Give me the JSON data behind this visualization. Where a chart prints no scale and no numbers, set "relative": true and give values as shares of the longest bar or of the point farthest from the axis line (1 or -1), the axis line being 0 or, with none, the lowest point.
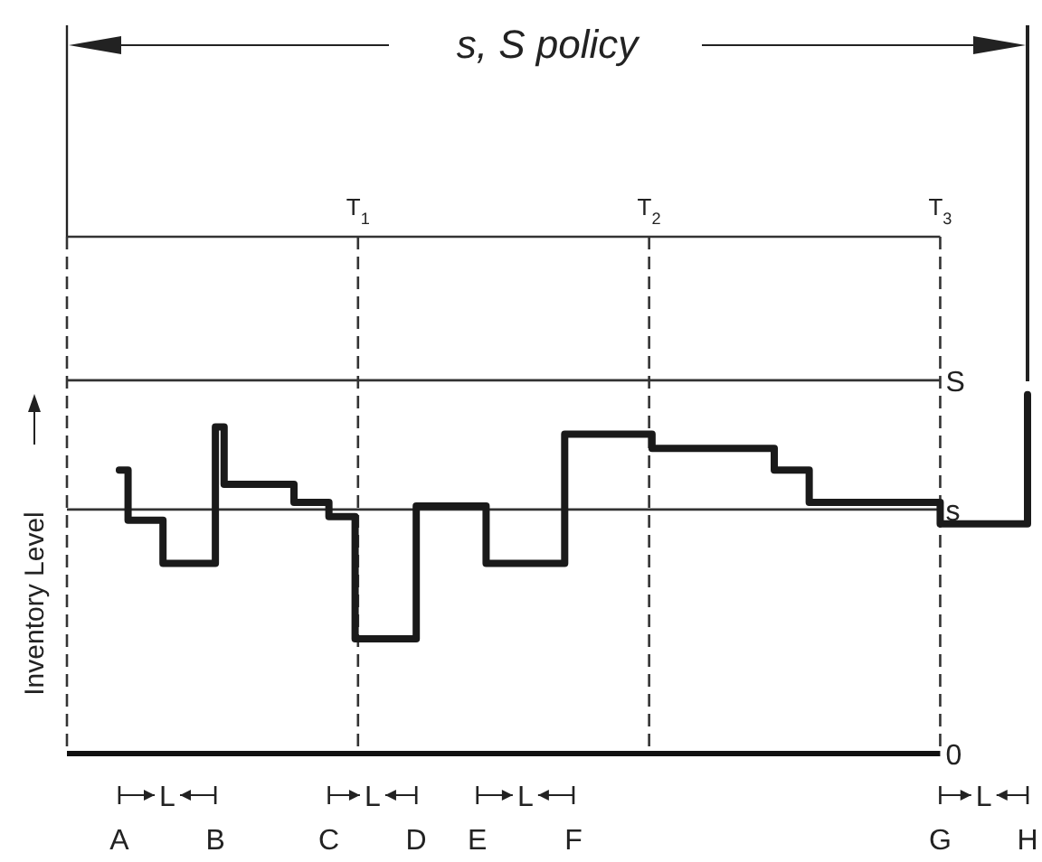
{
  "chart_data": {
    "type": "step",
    "title": "s, S policy",
    "ylabel": "Inventory Level",
    "relative": true,
    "categories": [
      null,
      null,
      null,
      null,
      null,
      null,
      "A",
      null,
      null,
      null,
      null,
      null,
      null,
      null,
      null,
      null,
      null,
      "B",
      null,
      null,
      null,
      null,
      null,
      null,
      null,
      null,
      null,
      null,
      null,
      null,
      "C",
      null,
      null,
      null,
      null,
      null,
      null,
      null,
      null,
      null,
      "D",
      null,
      null,
      null,
      null,
      null,
      null,
      "E",
      null,
      null,
      null,
      null,
      null,
      null,
      null,
      null,
      null,
      null,
      "F",
      null,
      null,
      null,
      null,
      null,
      null,
      null,
      null,
      null,
      null,
      null,
      null,
      null,
      null,
      null,
      null,
      null,
      null,
      null,
      null,
      null,
      null,
      null,
      null,
      null,
      null,
      null,
      null,
      null,
      null,
      null,
      null,
      null,
      null,
      null,
      null,
      null,
      null,
      null,
      null,
      null,
      "G",
      null,
      null,
      null,
      null,
      null,
      null,
      null,
      null,
      null,
      "H"
    ],
    "marker": "none",
    "line_style": "solid",
    "series": [
      {
        "color": "#1a1a1a",
        "values": [
          null,
          null,
          null,
          null,
          null,
          null,
          0.79,
          0.65,
          0.65,
          0.65,
          0.65,
          0.53,
          0.53,
          0.53,
          0.53,
          0.53,
          0.53,
          0.91,
          0.75,
          0.75,
          0.75,
          0.75,
          0.75,
          0.75,
          0.75,
          0.75,
          0.7,
          0.7,
          0.7,
          0.7,
          0.66,
          0.66,
          0.66,
          0.32,
          0.32,
          0.32,
          0.32,
          0.32,
          0.32,
          0.32,
          0.69,
          0.69,
          0.69,
          0.69,
          0.69,
          0.69,
          0.69,
          0.69,
          0.53,
          0.53,
          0.53,
          0.53,
          0.53,
          0.53,
          0.53,
          0.53,
          0.53,
          0.89,
          0.89,
          0.89,
          0.89,
          0.89,
          0.89,
          0.89,
          0.89,
          0.89,
          0.89,
          0.85,
          0.85,
          0.85,
          0.85,
          0.85,
          0.85,
          0.85,
          0.85,
          0.85,
          0.85,
          0.85,
          0.85,
          0.85,
          0.85,
          0.79,
          0.79,
          0.79,
          0.79,
          0.7,
          0.7,
          0.7,
          0.7,
          0.7,
          0.7,
          0.7,
          0.7,
          0.7,
          0.7,
          0.7,
          0.7,
          0.7,
          0.7,
          0.7,
          0.64,
          0.64,
          0.64,
          0.64,
          0.64,
          0.64,
          0.64,
          0.64,
          0.64,
          0.64,
          1.0
        ]
      }
    ],
    "ref_lines": [
      {
        "axis": "x",
        "value": "G",
        "label": "T$_{3}$",
        "line_style": "dashed",
        "color": "#333333"
      },
      {
        "axis": "y",
        "value": 1.44,
        "label": null,
        "line_style": "solid",
        "color": "#333333"
      },
      {
        "axis": "y",
        "value": 1.04,
        "label": "S",
        "line_style": "solid",
        "color": "#333333"
      },
      {
        "axis": "y",
        "value": 0.68,
        "label": "s",
        "line_style": "solid",
        "color": "#333333"
      }
    ],
    "grid": "x",
    "annotations": [
      "T$_{1}$",
      "T$_{2}$",
      "L",
      "L",
      "L",
      "L",
      "0"
    ]
  }
}
